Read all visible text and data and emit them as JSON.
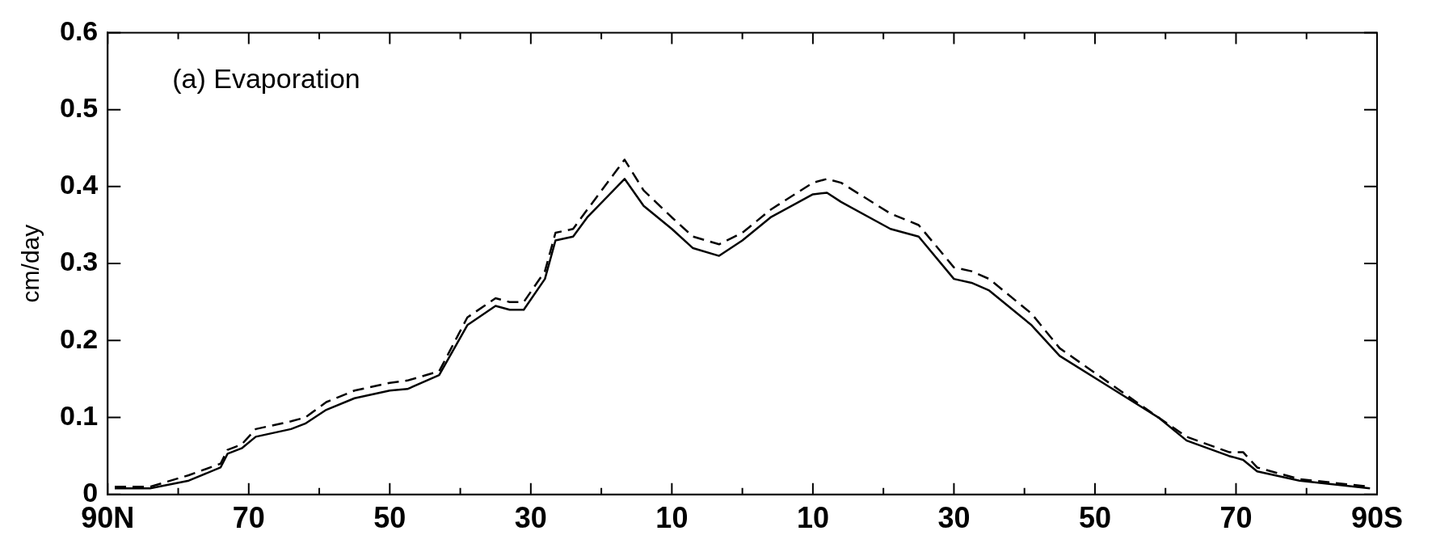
{
  "chart_data": {
    "type": "line",
    "ylabel": "cm/day",
    "annotations": [
      "(a) Evaporation"
    ],
    "xlim": [
      90,
      -90
    ],
    "xticks": [
      {
        "value": 90,
        "label": "90N"
      },
      {
        "value": 80,
        "label": null
      },
      70,
      {
        "value": 60,
        "label": null
      },
      50,
      {
        "value": 40,
        "label": null
      },
      30,
      {
        "value": 20,
        "label": null
      },
      10,
      {
        "value": 0,
        "label": null
      },
      {
        "value": -10,
        "label": "10"
      },
      {
        "value": -20,
        "label": null
      },
      {
        "value": -30,
        "label": "30"
      },
      {
        "value": -40,
        "label": null
      },
      {
        "value": -50,
        "label": "50"
      },
      {
        "value": -60,
        "label": null
      },
      {
        "value": -70,
        "label": "70"
      },
      {
        "value": -80,
        "label": null
      },
      {
        "value": -90,
        "label": "90S"
      }
    ],
    "ylim": [
      0,
      0.6
    ],
    "yticks": [
      0,
      0.1,
      0.2,
      0.3,
      0.4,
      0.5,
      0.6
    ],
    "grid": false,
    "legend": false,
    "marker": "none",
    "x": [
      89,
      84,
      78.5,
      74,
      73,
      71,
      69,
      64,
      62,
      59,
      55,
      50,
      47.5,
      43,
      39,
      35,
      33,
      31,
      28,
      26.5,
      24,
      22,
      16.7,
      14,
      10,
      7,
      3.3,
      0,
      -4,
      -10,
      -12,
      -14,
      -21,
      -25,
      -30,
      -32.5,
      -35,
      -41,
      -45,
      -52,
      -59,
      -63,
      -69,
      -71,
      -73,
      -79,
      -89
    ],
    "series": [
      {
        "color": "#000000",
        "line_style": "solid",
        "values": [
          0.008,
          0.008,
          0.018,
          0.035,
          0.053,
          0.06,
          0.075,
          0.085,
          0.092,
          0.11,
          0.125,
          0.135,
          0.137,
          0.155,
          0.22,
          0.245,
          0.24,
          0.24,
          0.28,
          0.33,
          0.335,
          0.36,
          0.41,
          0.375,
          0.345,
          0.32,
          0.31,
          0.33,
          0.36,
          0.39,
          0.392,
          0.38,
          0.345,
          0.335,
          0.28,
          0.275,
          0.265,
          0.22,
          0.18,
          0.14,
          0.1,
          0.07,
          0.05,
          0.045,
          0.03,
          0.018,
          0.008
        ]
      },
      {
        "color": "#000000",
        "line_style": "dashed",
        "values": [
          0.01,
          0.01,
          0.025,
          0.04,
          0.058,
          0.065,
          0.085,
          0.095,
          0.1,
          0.12,
          0.135,
          0.145,
          0.148,
          0.16,
          0.23,
          0.255,
          0.25,
          0.25,
          0.29,
          0.34,
          0.345,
          0.37,
          0.435,
          0.395,
          0.36,
          0.335,
          0.325,
          0.34,
          0.37,
          0.405,
          0.41,
          0.405,
          0.365,
          0.35,
          0.295,
          0.29,
          0.28,
          0.235,
          0.19,
          0.145,
          0.1,
          0.075,
          0.055,
          0.055,
          0.035,
          0.02,
          0.01
        ]
      }
    ]
  }
}
